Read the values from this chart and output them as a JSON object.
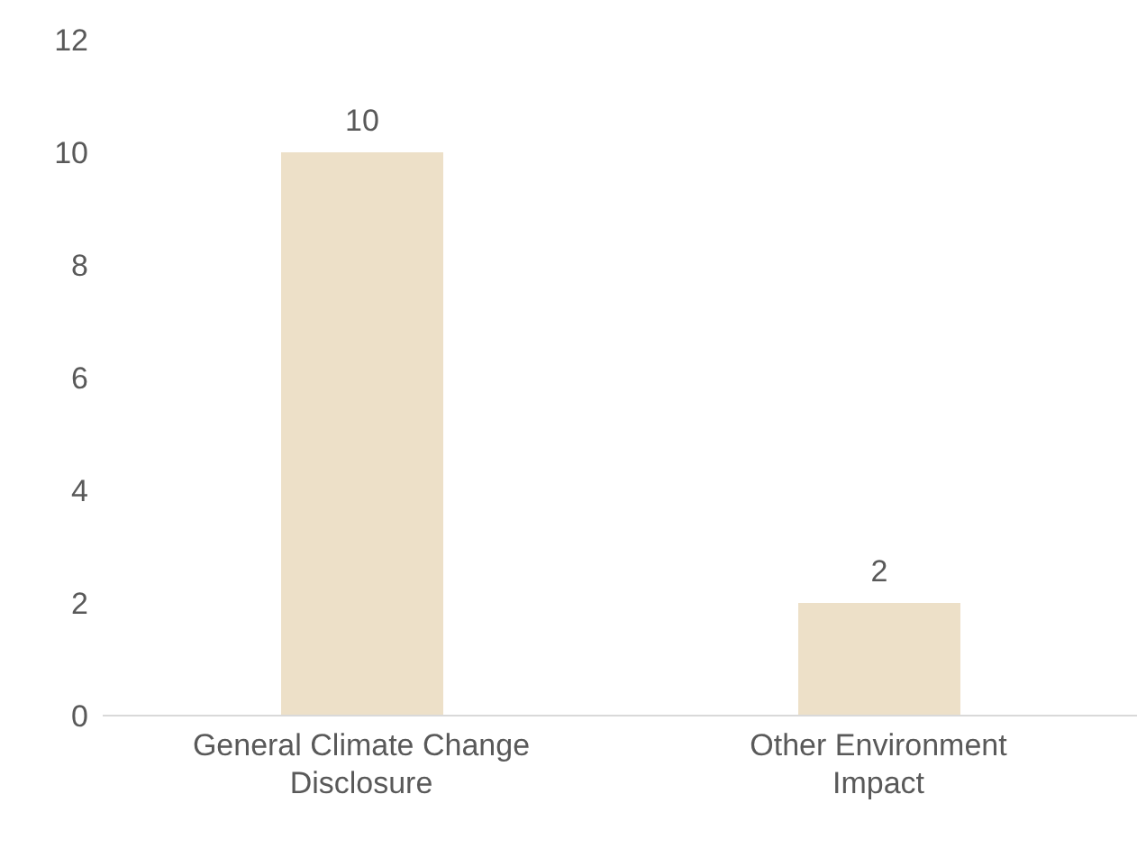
{
  "chart_data": {
    "type": "bar",
    "categories": [
      "General Climate Change Disclosure",
      "Other Environment Impact"
    ],
    "values": [
      10,
      2
    ],
    "color": "#ede0c8",
    "ylim": [
      0,
      12
    ],
    "yticks": [
      0,
      2,
      4,
      6,
      8,
      10,
      12
    ],
    "data_labels": true
  }
}
